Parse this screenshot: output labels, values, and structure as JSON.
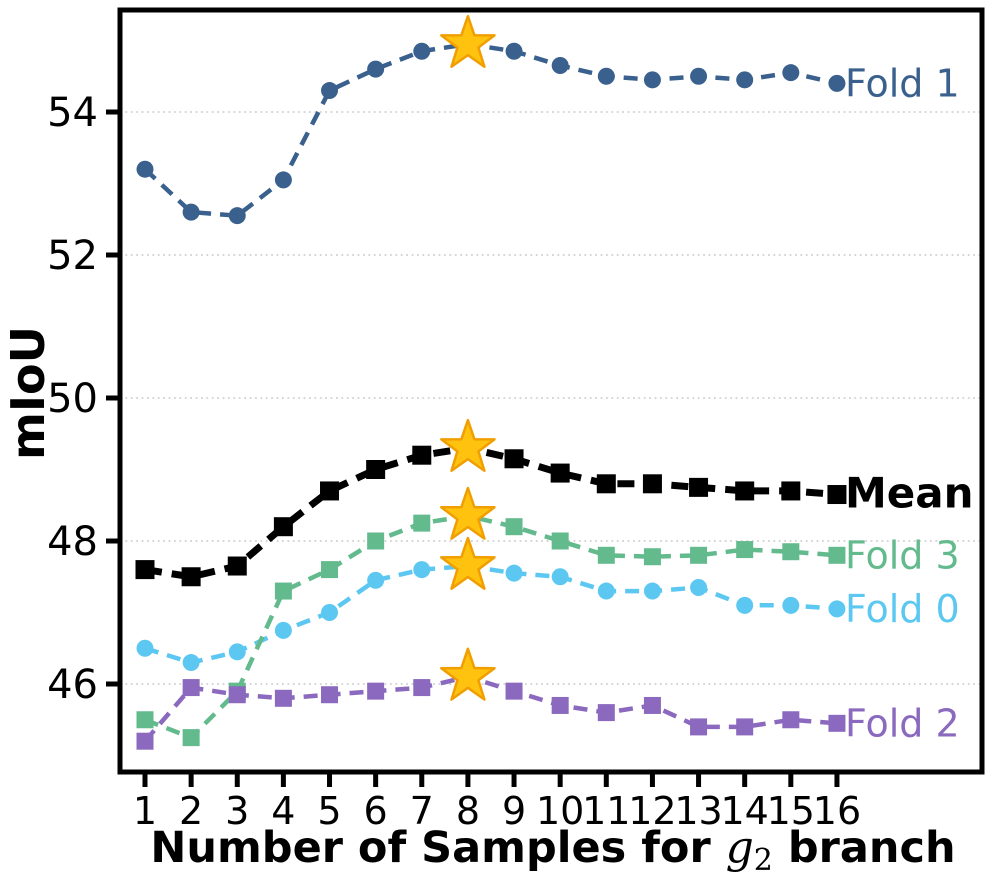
{
  "figure": {
    "background": "#ffffff",
    "axis_color": "#000000",
    "grid_color": "#c9c9c9"
  },
  "chart_data": {
    "type": "line",
    "title": "",
    "xlabel": "Number of Samples for g2 branch",
    "xlabel_parts": {
      "prefix": "Number of Samples for ",
      "math_var": "g",
      "math_sub": "2",
      "suffix": " branch"
    },
    "ylabel": "mIoU",
    "x": [
      1,
      2,
      3,
      4,
      5,
      6,
      7,
      8,
      9,
      10,
      11,
      12,
      13,
      14,
      15,
      16
    ],
    "x_tick_labels": [
      "1",
      "2",
      "3",
      "4",
      "5",
      "6",
      "7",
      "8",
      "9",
      "10",
      "11",
      "12",
      "13",
      "14",
      "15",
      "16"
    ],
    "y_ticks": [
      46,
      48,
      50,
      52,
      54
    ],
    "y_tick_labels": [
      "46",
      "48",
      "50",
      "52",
      "54"
    ],
    "xlim": [
      0.45,
      19.15
    ],
    "ylim": [
      44.75,
      55.45
    ],
    "grid": "horizontal-dotted",
    "legend_position": "inline-right",
    "star_marker": {
      "x": 8,
      "fill": "#FFC30F",
      "stroke": "#F09E00"
    },
    "series": [
      {
        "name": "Fold 0",
        "color": "#5CC8F2",
        "marker": "circle",
        "label_bold": false,
        "star_at": 8,
        "values": [
          46.5,
          46.3,
          46.45,
          46.75,
          47.0,
          47.45,
          47.6,
          47.65,
          47.55,
          47.5,
          47.3,
          47.3,
          47.35,
          47.1,
          47.1,
          47.05
        ]
      },
      {
        "name": "Fold 3",
        "color": "#63BA8D",
        "marker": "square",
        "label_bold": false,
        "star_at": 8,
        "values": [
          45.5,
          45.25,
          45.9,
          47.3,
          47.6,
          48.0,
          48.25,
          48.35,
          48.2,
          48.0,
          47.8,
          47.78,
          47.8,
          47.88,
          47.85,
          47.8
        ]
      },
      {
        "name": "Fold 2",
        "color": "#8A69BE",
        "marker": "square",
        "label_bold": false,
        "star_at": 8,
        "values": [
          45.2,
          45.95,
          45.85,
          45.8,
          45.85,
          45.9,
          45.95,
          46.1,
          45.9,
          45.7,
          45.6,
          45.7,
          45.4,
          45.4,
          45.5,
          45.45
        ]
      },
      {
        "name": "Fold 1",
        "color": "#3A608D",
        "marker": "circle",
        "label_bold": false,
        "star_at": 8,
        "values": [
          53.2,
          52.6,
          52.55,
          53.05,
          54.3,
          54.6,
          54.85,
          54.95,
          54.85,
          54.65,
          54.5,
          54.45,
          54.5,
          54.45,
          54.55,
          54.4
        ]
      },
      {
        "name": "Mean",
        "color": "#000000",
        "marker": "square",
        "label_bold": true,
        "star_at": 8,
        "values": [
          47.6,
          47.5,
          47.65,
          48.2,
          48.7,
          49.0,
          49.2,
          49.3,
          49.15,
          48.95,
          48.8,
          48.8,
          48.75,
          48.7,
          48.7,
          48.65
        ]
      }
    ]
  }
}
